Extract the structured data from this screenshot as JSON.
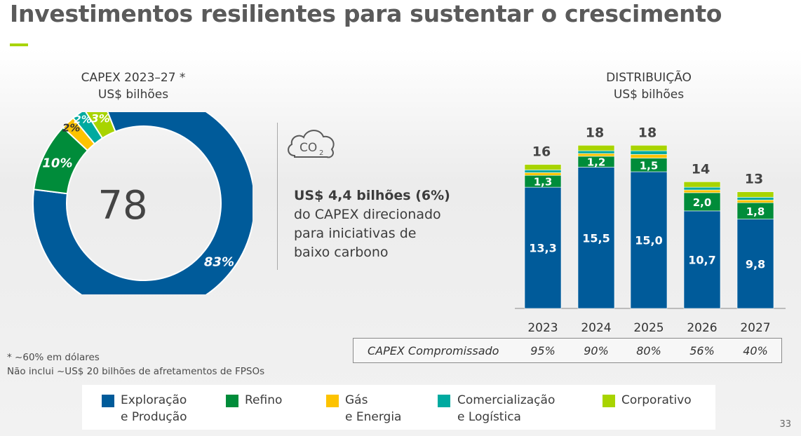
{
  "page": {
    "title": "Investimentos resilientes para sustentar o crescimento",
    "page_number": "33",
    "accent_color": "#a8d400"
  },
  "left": {
    "header_line1": "CAPEX 2023–27 *",
    "header_line2": "US$ bilhões",
    "center_value": "78"
  },
  "middle": {
    "icon": "co2-cloud-icon",
    "text_bold": "US$ 4,4 bilhões (6%)",
    "text_line2": "do CAPEX direcionado",
    "text_line3": "para iniciativas de",
    "text_line4": "baixo carbono"
  },
  "right": {
    "header_line1": "DISTRIBUIÇÃO",
    "header_line2": "US$ bilhões"
  },
  "notes": {
    "line1": "* ~60% em dólares",
    "line2": "Não inclui ~US$ 20 bilhões de afretamentos de FPSOs"
  },
  "capex_committed": {
    "label": "CAPEX Compromissado",
    "values": [
      "95%",
      "90%",
      "80%",
      "56%",
      "40%"
    ]
  },
  "legend": [
    {
      "line1": "Exploração",
      "line2": "e Produção",
      "color": "#005b9a"
    },
    {
      "line1": "Refino",
      "line2": "",
      "color": "#008c3a"
    },
    {
      "line1": "Gás",
      "line2": "e Energia",
      "color": "#fdc300"
    },
    {
      "line1": "Comercialização",
      "line2": "e Logística",
      "color": "#00aaa0"
    },
    {
      "line1": "Corporativo",
      "line2": "",
      "color": "#a8d400"
    }
  ],
  "chart_data": [
    {
      "type": "pie",
      "title": "CAPEX 2023–27 *",
      "subtitle": "US$ bilhões",
      "total": 78,
      "slices": [
        {
          "name": "Exploração e Produção",
          "value": 83,
          "label": "83%",
          "color": "#005b9a"
        },
        {
          "name": "Refino",
          "value": 10,
          "label": "10%",
          "color": "#008c3a"
        },
        {
          "name": "Gás e Energia",
          "value": 2,
          "label": "2%",
          "color": "#fdc300"
        },
        {
          "name": "Comercialização e Logística",
          "value": 2,
          "label": "2%",
          "color": "#00aaa0"
        },
        {
          "name": "Corporativo",
          "value": 3,
          "label": "3%",
          "color": "#a8d400"
        }
      ]
    },
    {
      "type": "bar",
      "stacked": true,
      "title": "DISTRIBUIÇÃO",
      "subtitle": "US$ bilhões",
      "categories": [
        "2023",
        "2024",
        "2025",
        "2026",
        "2027"
      ],
      "totals": [
        16,
        18,
        18,
        14,
        13
      ],
      "series": [
        {
          "name": "Exploração e Produção",
          "color": "#005b9a",
          "values": [
            13.3,
            15.5,
            15.0,
            10.7,
            9.8
          ],
          "labels": [
            "13,3",
            "15,5",
            "15,0",
            "10,7",
            "9,8"
          ]
        },
        {
          "name": "Refino",
          "color": "#008c3a",
          "values": [
            1.3,
            1.2,
            1.5,
            2.0,
            1.8
          ],
          "labels": [
            "1,3",
            "1,2",
            "1,5",
            "2,0",
            "1,8"
          ]
        },
        {
          "name": "Gás e Energia",
          "color": "#fdc300",
          "values": [
            0.3,
            0.3,
            0.4,
            0.3,
            0.3
          ]
        },
        {
          "name": "Comercialização e Logística",
          "color": "#00aaa0",
          "values": [
            0.3,
            0.3,
            0.4,
            0.3,
            0.3
          ]
        },
        {
          "name": "Corporativo",
          "color": "#a8d400",
          "values": [
            0.6,
            0.6,
            0.6,
            0.6,
            0.6
          ]
        }
      ]
    }
  ]
}
